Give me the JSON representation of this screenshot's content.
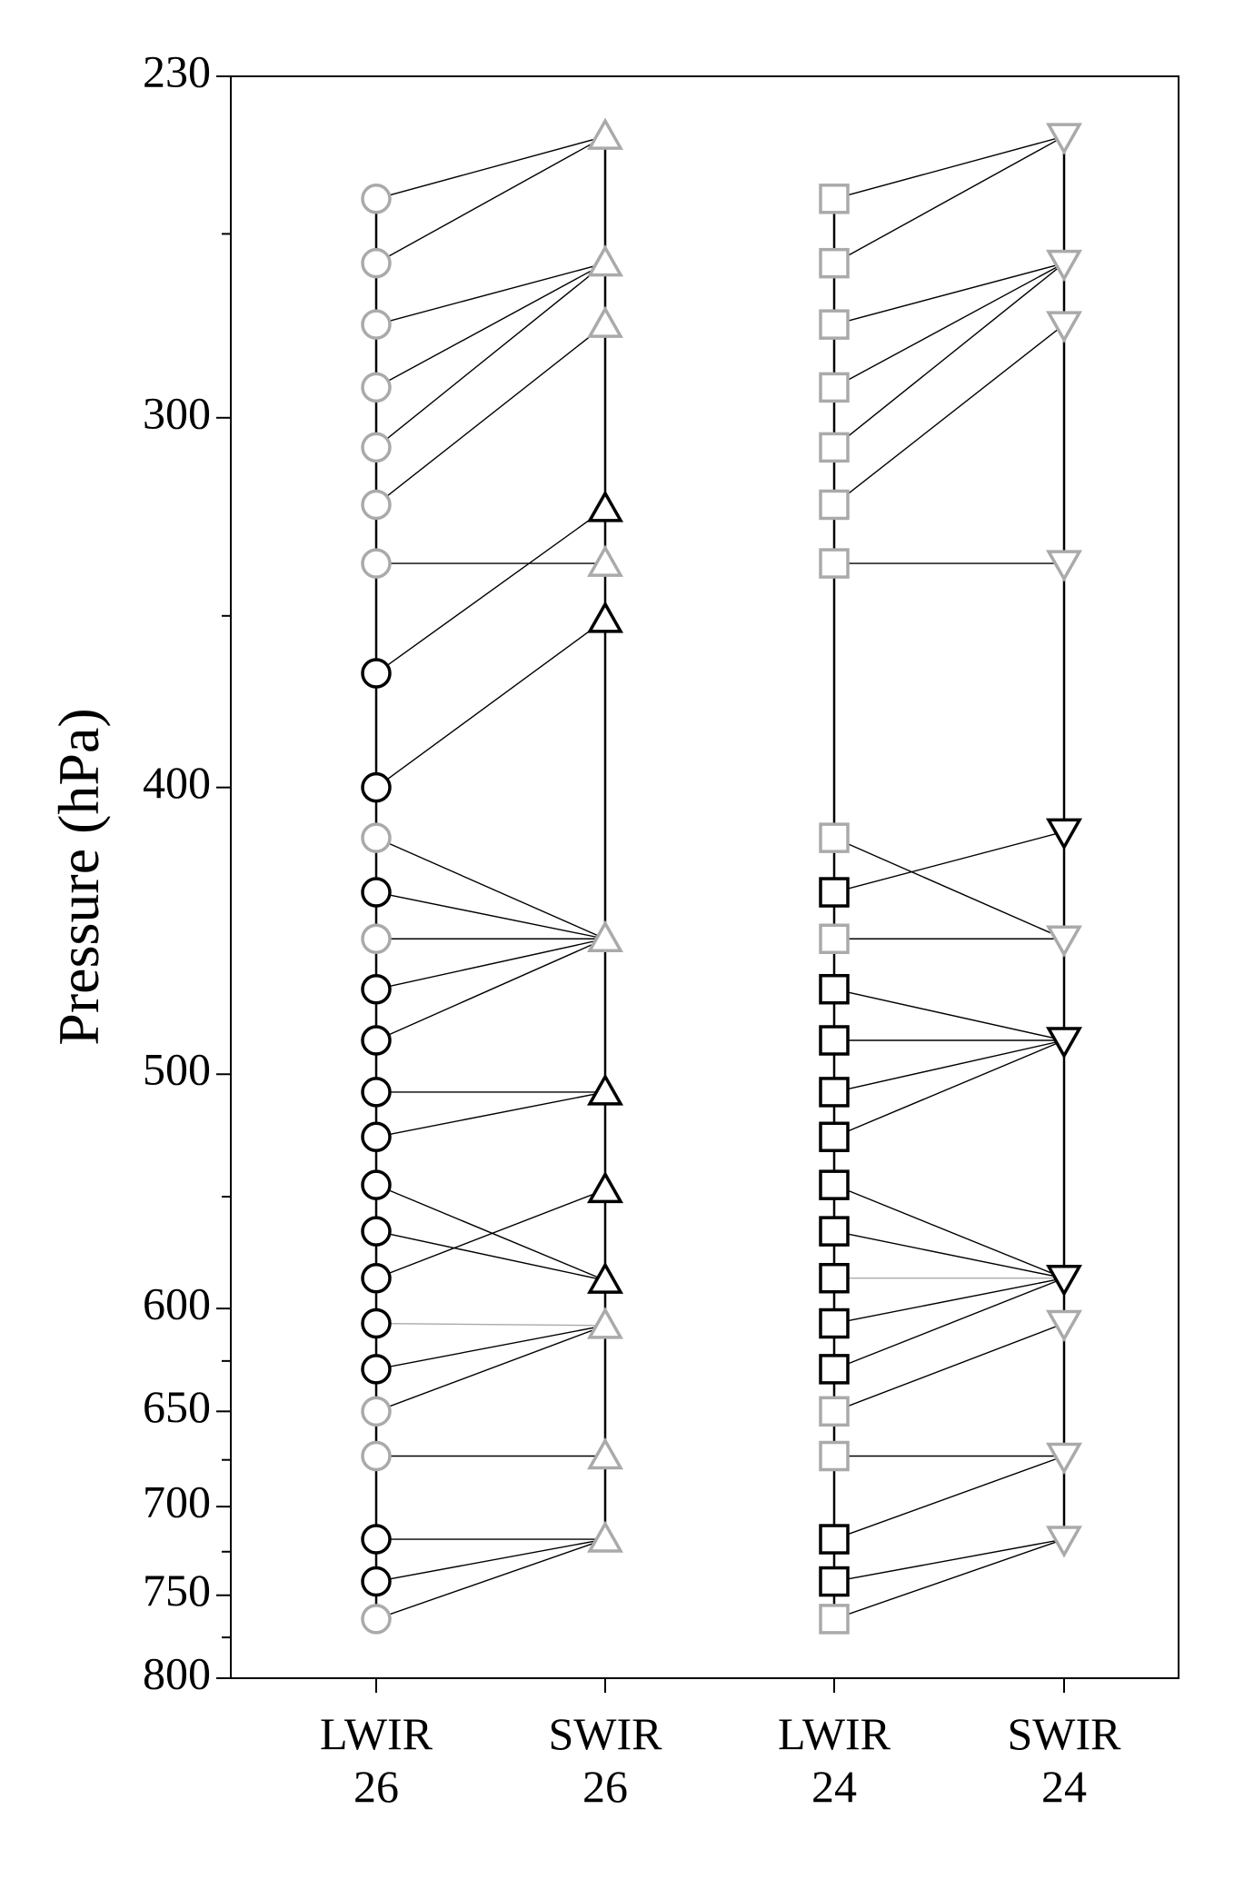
{
  "chart_data": {
    "type": "scatter",
    "y_label": "Pressure (hPa)",
    "ylim": [
      230,
      800
    ],
    "log_y": true,
    "yticks": [
      230,
      300,
      400,
      500,
      600,
      650,
      700,
      750,
      800
    ],
    "yminor": [
      260,
      350,
      550,
      625,
      675,
      725,
      775
    ],
    "series": [
      {
        "name": "LWIR",
        "channel": "26",
        "marker": "circle",
        "values": [
          253,
          266,
          279,
          293,
          307,
          321,
          336,
          366,
          400,
          416,
          434,
          450,
          468,
          487,
          507,
          525,
          545,
          565,
          586,
          607,
          629,
          650,
          673,
          718,
          742,
          764
        ],
        "colors": [
          "#aaaaaa",
          "#aaaaaa",
          "#aaaaaa",
          "#aaaaaa",
          "#aaaaaa",
          "#aaaaaa",
          "#aaaaaa",
          "#000000",
          "#000000",
          "#aaaaaa",
          "#000000",
          "#aaaaaa",
          "#000000",
          "#000000",
          "#000000",
          "#000000",
          "#000000",
          "#000000",
          "#000000",
          "#000000",
          "#000000",
          "#aaaaaa",
          "#aaaaaa",
          "#000000",
          "#000000",
          "#aaaaaa"
        ],
        "matches": [
          241,
          241,
          266,
          266,
          266,
          279,
          336,
          322,
          351,
          450,
          450,
          450,
          450,
          450,
          507,
          507,
          587,
          587,
          547,
          608,
          608,
          608,
          673,
          718,
          718,
          718
        ],
        "match_colors": [
          "#000000",
          "#000000",
          "#000000",
          "#000000",
          "#000000",
          "#000000",
          "#000000",
          "#000000",
          "#000000",
          "#000000",
          "#000000",
          "#000000",
          "#000000",
          "#000000",
          "#000000",
          "#000000",
          "#000000",
          "#000000",
          "#000000",
          "#aaaaaa",
          "#000000",
          "#000000",
          "#000000",
          "#000000",
          "#000000",
          "#000000"
        ]
      },
      {
        "name": "SWIR",
        "channel": "26",
        "marker": "triangle-up",
        "values": [
          241,
          266,
          279,
          322,
          336,
          351,
          450,
          507,
          547,
          587,
          608,
          673,
          718
        ],
        "colors": [
          "#aaaaaa",
          "#aaaaaa",
          "#aaaaaa",
          "#000000",
          "#aaaaaa",
          "#000000",
          "#aaaaaa",
          "#000000",
          "#000000",
          "#000000",
          "#aaaaaa",
          "#aaaaaa",
          "#aaaaaa"
        ]
      },
      {
        "name": "LWIR",
        "channel": "24",
        "marker": "square",
        "values": [
          253,
          266,
          279,
          293,
          307,
          321,
          336,
          416,
          434,
          450,
          468,
          487,
          507,
          525,
          545,
          565,
          586,
          607,
          629,
          650,
          673,
          718,
          742,
          764
        ],
        "colors": [
          "#aaaaaa",
          "#aaaaaa",
          "#aaaaaa",
          "#aaaaaa",
          "#aaaaaa",
          "#aaaaaa",
          "#aaaaaa",
          "#aaaaaa",
          "#000000",
          "#aaaaaa",
          "#000000",
          "#000000",
          "#000000",
          "#000000",
          "#000000",
          "#000000",
          "#000000",
          "#000000",
          "#000000",
          "#aaaaaa",
          "#aaaaaa",
          "#000000",
          "#000000",
          "#aaaaaa"
        ],
        "matches": [
          241,
          241,
          266,
          266,
          266,
          279,
          336,
          450,
          414,
          450,
          487,
          487,
          487,
          487,
          586,
          586,
          586,
          586,
          586,
          607,
          673,
          673,
          718,
          718
        ],
        "match_colors": [
          "#000000",
          "#000000",
          "#000000",
          "#000000",
          "#000000",
          "#000000",
          "#000000",
          "#000000",
          "#000000",
          "#000000",
          "#000000",
          "#000000",
          "#000000",
          "#000000",
          "#000000",
          "#000000",
          "#aaaaaa",
          "#000000",
          "#000000",
          "#000000",
          "#000000",
          "#000000",
          "#000000",
          "#000000"
        ]
      },
      {
        "name": "SWIR",
        "channel": "24",
        "marker": "triangle-down",
        "values": [
          241,
          266,
          279,
          336,
          414,
          450,
          487,
          586,
          607,
          673,
          718
        ],
        "colors": [
          "#aaaaaa",
          "#aaaaaa",
          "#aaaaaa",
          "#aaaaaa",
          "#000000",
          "#aaaaaa",
          "#000000",
          "#000000",
          "#aaaaaa",
          "#aaaaaa",
          "#aaaaaa"
        ]
      }
    ]
  }
}
